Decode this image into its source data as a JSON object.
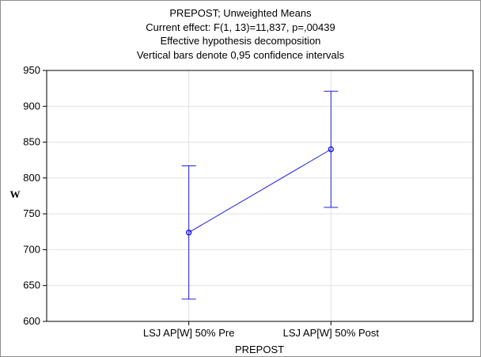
{
  "chart_data": {
    "type": "line",
    "title_lines": [
      "PREPOST; Unweighted Means",
      "Current effect: F(1, 13)=11,837, p=,00439",
      "Effective hypothesis decomposition",
      "Vertical bars denote 0,95 confidence intervals"
    ],
    "xlabel": "PREPOST",
    "ylabel": "W",
    "categories": [
      "LSJ AP[W] 50% Pre",
      "LSJ AP[W] 50% Post"
    ],
    "series": [
      {
        "values": [
          724,
          840
        ],
        "ci_low": [
          631,
          759
        ],
        "ci_high": [
          817,
          921
        ]
      }
    ],
    "ylim": [
      600,
      950
    ],
    "yticks": [
      600,
      650,
      700,
      750,
      800,
      850,
      900,
      950
    ],
    "grid": true,
    "colors": {
      "series": "#2020e0",
      "grid": "#e0e0e0",
      "axis": "#000000"
    }
  }
}
